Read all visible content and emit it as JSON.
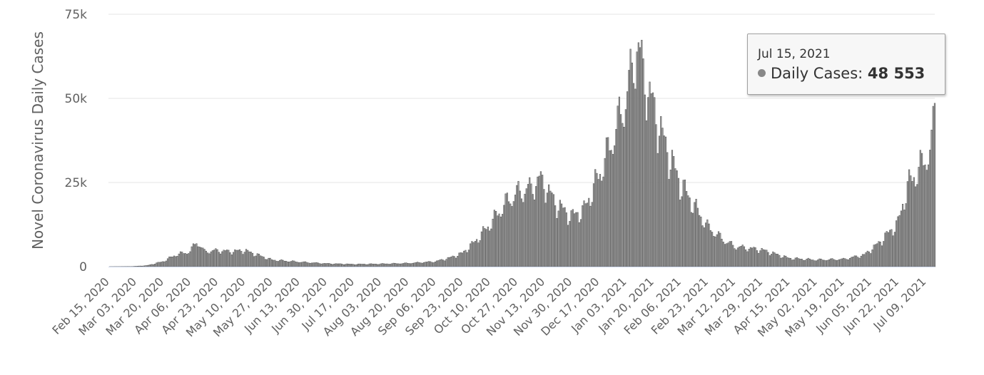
{
  "chart_data": {
    "type": "bar",
    "ylabel": "Novel Coronavirus Daily Cases",
    "ylim": [
      0,
      75000
    ],
    "yticks": [
      {
        "value": 0,
        "label": "0"
      },
      {
        "value": 25000,
        "label": "25k"
      },
      {
        "value": 50000,
        "label": "50k"
      },
      {
        "value": 75000,
        "label": "75k"
      }
    ],
    "x_start": "2020-02-15",
    "x_end": "2021-07-15",
    "xtick_labels": [
      "Feb 15, 2020",
      "Mar 03, 2020",
      "Mar 20, 2020",
      "Apr 06, 2020",
      "Apr 23, 2020",
      "May 10, 2020",
      "May 27, 2020",
      "Jun 13, 2020",
      "Jun 30, 2020",
      "Jul 17, 2020",
      "Aug 03, 2020",
      "Aug 20, 2020",
      "Sep 06, 2020",
      "Sep 23, 2020",
      "Oct 10, 2020",
      "Oct 27, 2020",
      "Nov 13, 2020",
      "Nov 30, 2020",
      "Dec 17, 2020",
      "Jan 03, 2021",
      "Jan 20, 2021",
      "Feb 06, 2021",
      "Feb 23, 2021",
      "Mar 12, 2021",
      "Mar 29, 2021",
      "Apr 15, 2021",
      "May 02, 2021",
      "May 19, 2021",
      "Jun 05, 2021",
      "Jun 22, 2021",
      "Jul 09, 2021"
    ],
    "series": [
      {
        "color": "#a3a3a3",
        "anchors": [
          [
            "2020-02-15",
            0
          ],
          [
            "2020-03-01",
            50
          ],
          [
            "2020-03-10",
            300
          ],
          [
            "2020-03-20",
            1500
          ],
          [
            "2020-03-28",
            3500
          ],
          [
            "2020-04-06",
            4500
          ],
          [
            "2020-04-10",
            7500
          ],
          [
            "2020-04-15",
            4500
          ],
          [
            "2020-04-23",
            4800
          ],
          [
            "2020-05-01",
            4500
          ],
          [
            "2020-05-10",
            4800
          ],
          [
            "2020-05-15",
            4000
          ],
          [
            "2020-05-27",
            2000
          ],
          [
            "2020-06-13",
            1400
          ],
          [
            "2020-06-30",
            900
          ],
          [
            "2020-07-17",
            700
          ],
          [
            "2020-08-03",
            800
          ],
          [
            "2020-08-20",
            1000
          ],
          [
            "2020-09-06",
            1500
          ],
          [
            "2020-09-15",
            2600
          ],
          [
            "2020-09-23",
            4000
          ],
          [
            "2020-10-01",
            7500
          ],
          [
            "2020-10-10",
            12500
          ],
          [
            "2020-10-20",
            19000
          ],
          [
            "2020-10-27",
            22000
          ],
          [
            "2020-11-05",
            23500
          ],
          [
            "2020-11-10",
            26000
          ],
          [
            "2020-11-13",
            25000
          ],
          [
            "2020-11-20",
            19000
          ],
          [
            "2020-11-30",
            15000
          ],
          [
            "2020-12-08",
            17000
          ],
          [
            "2020-12-17",
            27000
          ],
          [
            "2020-12-25",
            37000
          ],
          [
            "2021-01-03",
            50000
          ],
          [
            "2021-01-08",
            61000
          ],
          [
            "2021-01-10",
            67000
          ],
          [
            "2021-01-14",
            58000
          ],
          [
            "2021-01-20",
            48000
          ],
          [
            "2021-01-28",
            36000
          ],
          [
            "2021-02-06",
            25000
          ],
          [
            "2021-02-15",
            18000
          ],
          [
            "2021-02-23",
            12000
          ],
          [
            "2021-03-05",
            8000
          ],
          [
            "2021-03-12",
            6000
          ],
          [
            "2021-03-29",
            5000
          ],
          [
            "2021-04-15",
            2500
          ],
          [
            "2021-05-02",
            2000
          ],
          [
            "2021-05-19",
            2200
          ],
          [
            "2021-06-01",
            3500
          ],
          [
            "2021-06-10",
            7000
          ],
          [
            "2021-06-22",
            13000
          ],
          [
            "2021-06-28",
            24000
          ],
          [
            "2021-07-02",
            27000
          ],
          [
            "2021-07-09",
            32000
          ],
          [
            "2021-07-13",
            36000
          ],
          [
            "2021-07-14",
            42000
          ],
          [
            "2021-07-15",
            48553
          ]
        ]
      }
    ],
    "tooltip": {
      "date": "Jul 15, 2021",
      "series_label": "Daily Cases:",
      "value": "48 553"
    },
    "grid": true,
    "legend": "none"
  }
}
